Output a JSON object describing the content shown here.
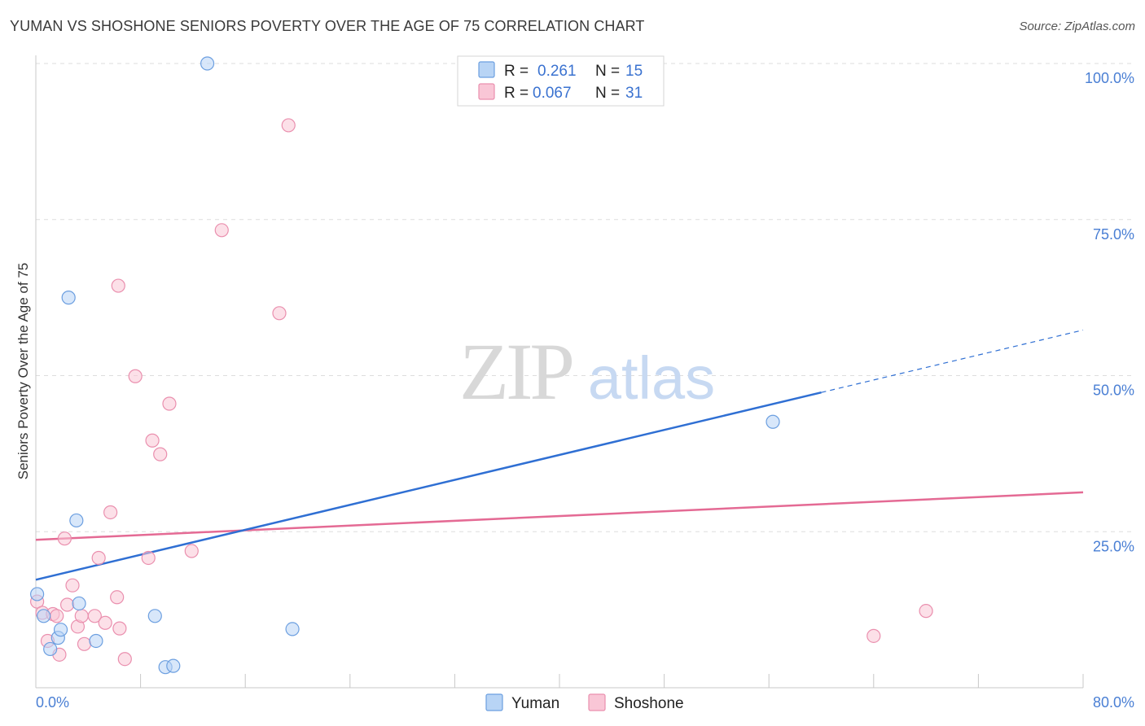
{
  "header": {
    "title": "YUMAN VS SHOSHONE SENIORS POVERTY OVER THE AGE OF 75 CORRELATION CHART",
    "source": "Source: ZipAtlas.com"
  },
  "colors": {
    "yuman_fill": "#b8d4f5",
    "yuman_stroke": "#6c9fe0",
    "yuman_line": "#2f6fd3",
    "shoshone_fill": "#f9c6d6",
    "shoshone_stroke": "#ea8fae",
    "shoshone_line": "#e46a94",
    "axis_tick": "#4a7fd4",
    "grid": "#dddddd"
  },
  "watermark": {
    "zip": "ZIP",
    "atlas": "atlas"
  },
  "legend": {
    "r_label": "R =",
    "n_label": "N =",
    "yuman": {
      "r": "0.261",
      "n": "15"
    },
    "shoshone": {
      "r": "0.067",
      "n": "31"
    }
  },
  "chart_data": {
    "type": "scatter",
    "title": "YUMAN VS SHOSHONE SENIORS POVERTY OVER THE AGE OF 75 CORRELATION CHART",
    "xlabel": "",
    "ylabel": "Seniors Poverty Over the Age of 75",
    "xlim": [
      0,
      80
    ],
    "ylim": [
      0,
      100
    ],
    "x_tick_labels": [
      "0.0%",
      "80.0%"
    ],
    "y_ticks": [
      25,
      50,
      75,
      100
    ],
    "y_tick_labels": [
      "25.0%",
      "50.0%",
      "75.0%",
      "100.0%"
    ],
    "x_minor_ticks": [
      8,
      16,
      24,
      32,
      40,
      48,
      56,
      64,
      72
    ],
    "series": [
      {
        "name": "Yuman",
        "points": [
          {
            "x": 0.1,
            "y": 15.0
          },
          {
            "x": 0.6,
            "y": 11.5
          },
          {
            "x": 1.1,
            "y": 6.2
          },
          {
            "x": 1.7,
            "y": 8.0
          },
          {
            "x": 1.9,
            "y": 9.3
          },
          {
            "x": 2.5,
            "y": 62.5
          },
          {
            "x": 3.1,
            "y": 26.8
          },
          {
            "x": 3.3,
            "y": 13.5
          },
          {
            "x": 4.6,
            "y": 7.5
          },
          {
            "x": 9.1,
            "y": 11.5
          },
          {
            "x": 9.9,
            "y": 3.3
          },
          {
            "x": 10.5,
            "y": 3.5
          },
          {
            "x": 13.1,
            "y": 100.0
          },
          {
            "x": 19.6,
            "y": 9.4
          },
          {
            "x": 56.3,
            "y": 42.6
          }
        ],
        "trendline": {
          "x_start": 0,
          "y_start": 17.3,
          "x_solid_end": 60,
          "y_solid_end": 47.3,
          "x_dash_end": 80,
          "y_dash_end": 57.3
        }
      },
      {
        "name": "Shoshone",
        "points": [
          {
            "x": 0.1,
            "y": 13.8
          },
          {
            "x": 0.5,
            "y": 12.0
          },
          {
            "x": 0.9,
            "y": 7.5
          },
          {
            "x": 1.3,
            "y": 11.8
          },
          {
            "x": 1.6,
            "y": 11.5
          },
          {
            "x": 1.8,
            "y": 5.3
          },
          {
            "x": 2.2,
            "y": 23.9
          },
          {
            "x": 2.4,
            "y": 13.3
          },
          {
            "x": 2.8,
            "y": 16.4
          },
          {
            "x": 3.2,
            "y": 9.8
          },
          {
            "x": 3.5,
            "y": 11.5
          },
          {
            "x": 3.7,
            "y": 7.0
          },
          {
            "x": 4.5,
            "y": 11.5
          },
          {
            "x": 4.8,
            "y": 20.8
          },
          {
            "x": 5.3,
            "y": 10.4
          },
          {
            "x": 5.7,
            "y": 28.1
          },
          {
            "x": 6.2,
            "y": 14.5
          },
          {
            "x": 6.3,
            "y": 64.4
          },
          {
            "x": 6.4,
            "y": 9.5
          },
          {
            "x": 6.8,
            "y": 4.6
          },
          {
            "x": 7.6,
            "y": 49.9
          },
          {
            "x": 8.6,
            "y": 20.8
          },
          {
            "x": 8.9,
            "y": 39.6
          },
          {
            "x": 9.5,
            "y": 37.4
          },
          {
            "x": 10.2,
            "y": 45.5
          },
          {
            "x": 11.9,
            "y": 21.9
          },
          {
            "x": 14.2,
            "y": 73.3
          },
          {
            "x": 18.6,
            "y": 60.0
          },
          {
            "x": 19.3,
            "y": 90.1
          },
          {
            "x": 64.0,
            "y": 8.3
          },
          {
            "x": 68.0,
            "y": 12.3
          }
        ],
        "trendline": {
          "x_start": 0,
          "y_start": 23.7,
          "x_solid_end": 80,
          "y_solid_end": 31.3
        }
      }
    ]
  }
}
